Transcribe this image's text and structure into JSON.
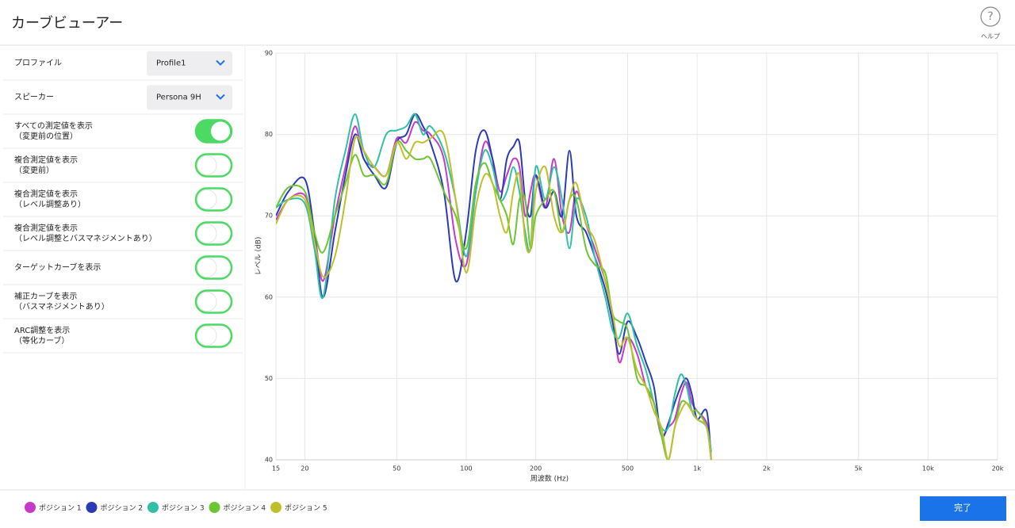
{
  "header": {
    "title": "カーブビューアー",
    "help_icon": "?",
    "help": "ヘルプ"
  },
  "settings": {
    "dropdowns": [
      {
        "label": "プロファイル",
        "value": "Profile1"
      },
      {
        "label": "スピーカー",
        "value": "Persona 9H"
      }
    ],
    "toggles": [
      {
        "label": [
          "すべての測定値を表示",
          "（変更前の位置）"
        ],
        "on": true
      },
      {
        "label": [
          "複合測定値を表示",
          "（変更前）"
        ],
        "on": false
      },
      {
        "label": [
          "複合測定値を表示",
          "（レベル調整あり）"
        ],
        "on": false
      },
      {
        "label": [
          "複合測定値を表示",
          "（レベル調整とバスマネジメントあり）"
        ],
        "on": false
      },
      {
        "label": [
          "ターゲットカーブを表示"
        ],
        "on": false
      },
      {
        "label": [
          "補正カーブを表示",
          "（バスマネジメントあり）"
        ],
        "on": false
      },
      {
        "label": [
          "ARC調整を表示",
          "（等化カーブ）"
        ],
        "on": false
      }
    ]
  },
  "chart_data": {
    "type": "line",
    "x_label": "周波数 (Hz)",
    "y_label": "レベル (dB)",
    "log_x": true,
    "grid": true,
    "xlim": [
      15,
      20000
    ],
    "ylim": [
      40,
      90
    ],
    "xticks": [
      15,
      20,
      50,
      100,
      200,
      500,
      {
        "value": 1000,
        "label": "1k"
      },
      {
        "value": 2000,
        "label": "2k"
      },
      {
        "value": 5000,
        "label": "5k"
      },
      {
        "value": 10000,
        "label": "10k"
      },
      {
        "value": 20000,
        "label": "20k"
      }
    ],
    "yticks": [
      40,
      50,
      60,
      70,
      80,
      90
    ],
    "x": [
      15,
      17,
      20,
      22,
      24,
      27,
      30,
      33,
      36,
      40,
      45,
      50,
      55,
      60,
      65,
      70,
      80,
      90,
      100,
      110,
      120,
      130,
      140,
      150,
      160,
      170,
      180,
      190,
      200,
      220,
      240,
      260,
      280,
      300,
      330,
      360,
      400,
      430,
      460,
      500,
      550,
      600,
      650,
      700,
      750,
      800,
      850,
      900,
      950,
      1000,
      1100,
      1150
    ],
    "series": [
      {
        "name": "ポジション 1",
        "color": "#c53ac9",
        "values": [
          69.5,
          72,
          72.5,
          68,
          62,
          70,
          76,
          81,
          77,
          76,
          75,
          79.5,
          79,
          81.5,
          80.5,
          80,
          77,
          67,
          64,
          73,
          79,
          77,
          73,
          75,
          77,
          76,
          70,
          73,
          75,
          71,
          77,
          70,
          68,
          73,
          69,
          66,
          62,
          58,
          52,
          55,
          53,
          49,
          47,
          43,
          44,
          45,
          48,
          49.5,
          47,
          46,
          44.5,
          41
        ]
      },
      {
        "name": "ポジション 2",
        "color": "#2a3bb5",
        "values": [
          70,
          73,
          74.5,
          68,
          60,
          68,
          75,
          80,
          77,
          75,
          73.5,
          79,
          80,
          82.5,
          81,
          79,
          73,
          62,
          68,
          78,
          80.5,
          77,
          72,
          77,
          78.5,
          79,
          72,
          70,
          75,
          71,
          73,
          70,
          78,
          70,
          68,
          65,
          61,
          57,
          53,
          57,
          55,
          52,
          49,
          43,
          44.5,
          47,
          49,
          50,
          48,
          45,
          46,
          40
        ]
      },
      {
        "name": "ポジション 3",
        "color": "#2fc0a6",
        "values": [
          71,
          72,
          71.5,
          66,
          60,
          72,
          78,
          82.5,
          78,
          76,
          80,
          80.5,
          81,
          82.5,
          80,
          81,
          78,
          72,
          65,
          73,
          78,
          76,
          72,
          73,
          76,
          73,
          68,
          66,
          76,
          72,
          76,
          72,
          66,
          72,
          70,
          65,
          60,
          56,
          55,
          58,
          54,
          51,
          47,
          44,
          44,
          48,
          50.5,
          49,
          46,
          45,
          44,
          41
        ]
      },
      {
        "name": "ポジション 4",
        "color": "#6cc531",
        "values": [
          71,
          73.5,
          73,
          68,
          65.5,
          70,
          74,
          77.5,
          75,
          75,
          74,
          79,
          78,
          77,
          77,
          77,
          73,
          70,
          66,
          74,
          76.5,
          74,
          72,
          70,
          66.5,
          72,
          72,
          66,
          70,
          72,
          73,
          68,
          72,
          72,
          66,
          64,
          63,
          58,
          57,
          56,
          50,
          49,
          47,
          43,
          40,
          44,
          47,
          47,
          46,
          46,
          44,
          40
        ]
      },
      {
        "name": "ポジション 5",
        "color": "#bfbf2c",
        "values": [
          69,
          72,
          72,
          67,
          62.5,
          65,
          72,
          79.5,
          78,
          76,
          75,
          79,
          77,
          79,
          79,
          79.5,
          80,
          72,
          63,
          71,
          75,
          74,
          70,
          68,
          73,
          75,
          67,
          66,
          73,
          76,
          70,
          68,
          72,
          74,
          69,
          67,
          62,
          58,
          54,
          55,
          51,
          49,
          46,
          44,
          40,
          44,
          46,
          47,
          46,
          45,
          44,
          40
        ]
      }
    ]
  },
  "footer": {
    "button": "完了"
  }
}
